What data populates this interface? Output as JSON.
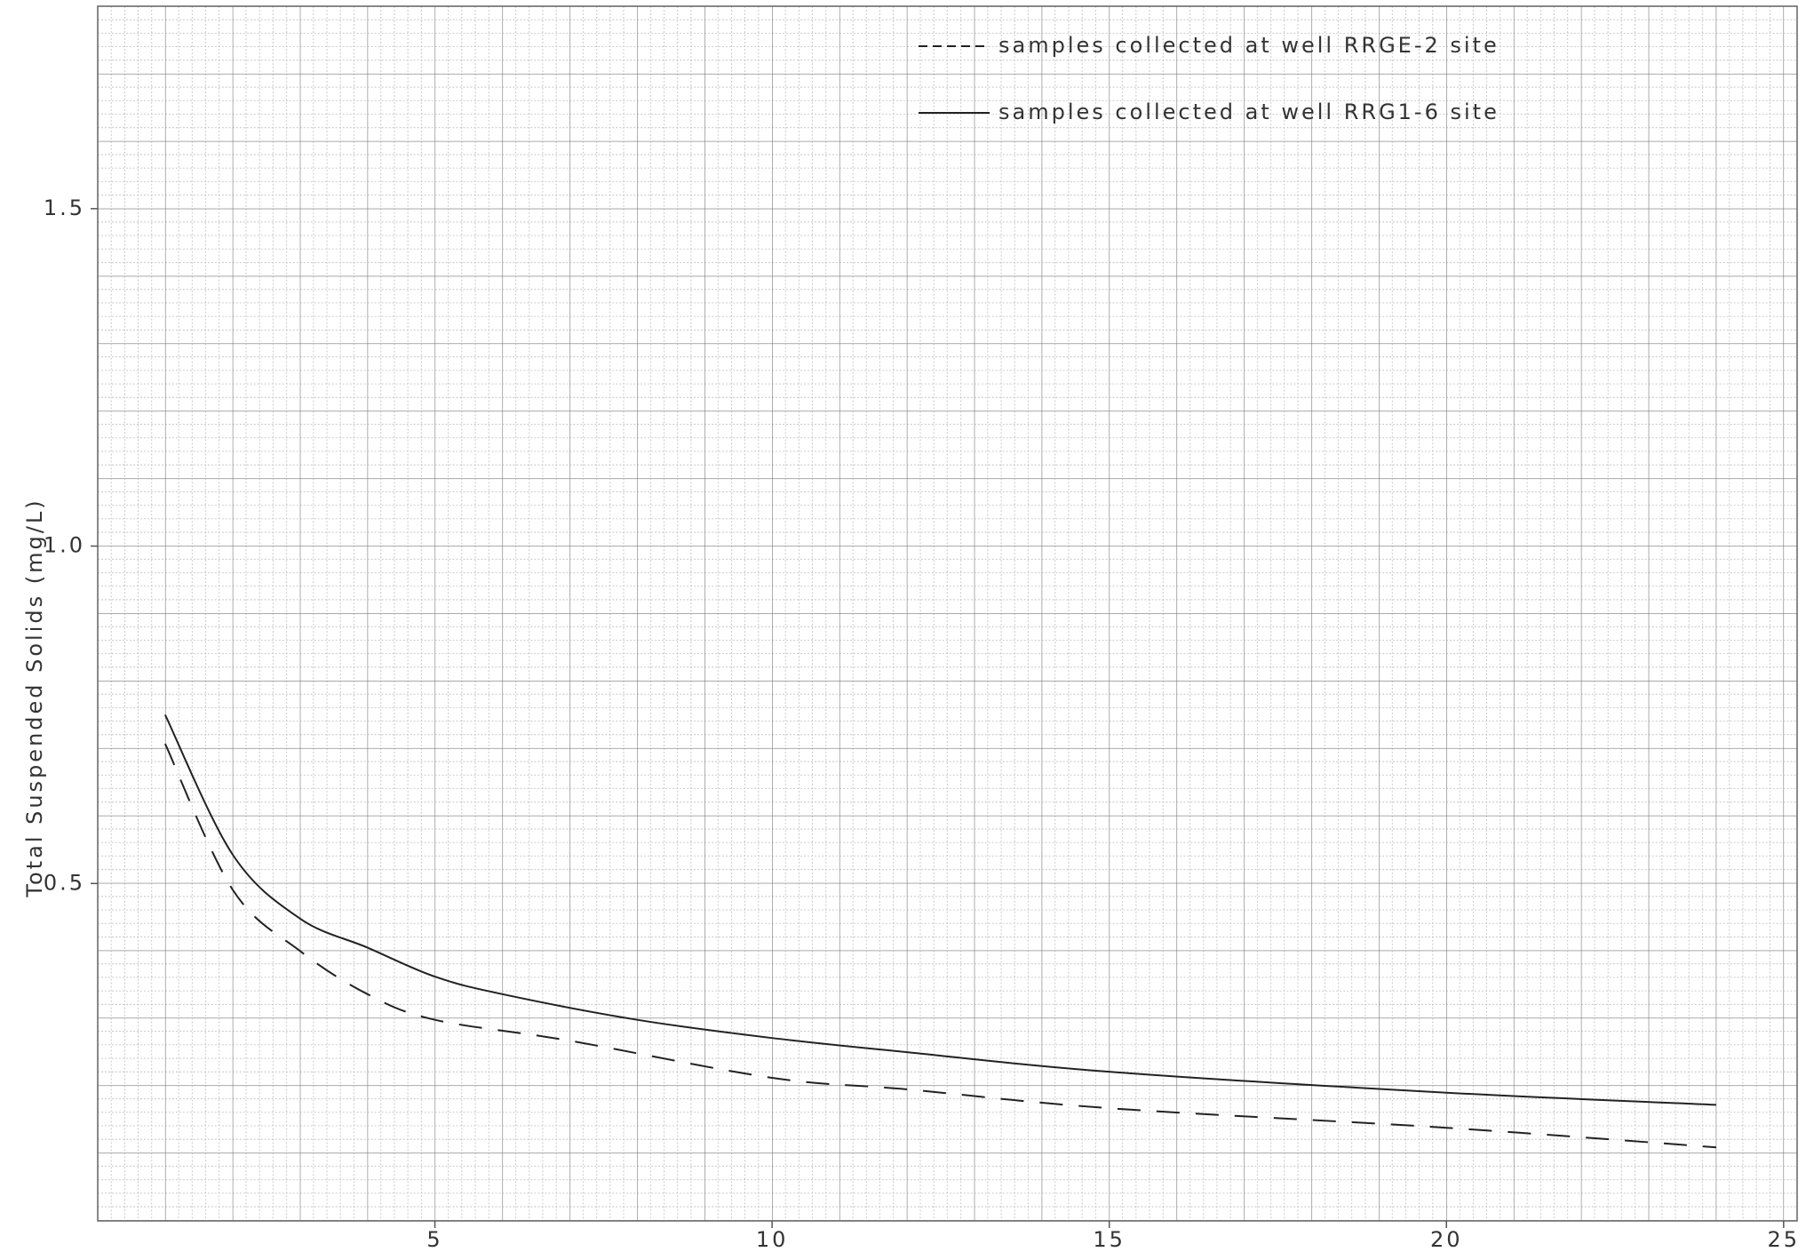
{
  "chart_data": {
    "type": "line",
    "y_label": "Total Suspended Solids (mg/L)",
    "xlim": [
      0,
      25.2
    ],
    "ylim": [
      0,
      1.8
    ],
    "xticks": [
      5,
      10,
      15,
      20,
      25
    ],
    "yticks": [
      0.5,
      {
        "value": 1,
        "label": "1.0"
      },
      1.5
    ],
    "legend": "top-right",
    "series": [
      {
        "name": "samples collected at well RRGE-2 site",
        "color": "#222222",
        "style": "dashed",
        "x": [
          1,
          2,
          3,
          4,
          5,
          7,
          10,
          12,
          15,
          20,
          24
        ],
        "values": [
          0.707,
          0.491,
          0.4,
          0.336,
          0.298,
          0.267,
          0.212,
          0.195,
          0.167,
          0.138,
          0.109
        ]
      },
      {
        "name": "samples collected at well RRG1-6 site",
        "color": "#222222",
        "style": "solid",
        "x": [
          1,
          2,
          3,
          4,
          5,
          6,
          8,
          10,
          12,
          15,
          20,
          24
        ],
        "values": [
          0.75,
          0.543,
          0.448,
          0.405,
          0.362,
          0.336,
          0.298,
          0.271,
          0.25,
          0.221,
          0.19,
          0.172
        ]
      }
    ]
  }
}
